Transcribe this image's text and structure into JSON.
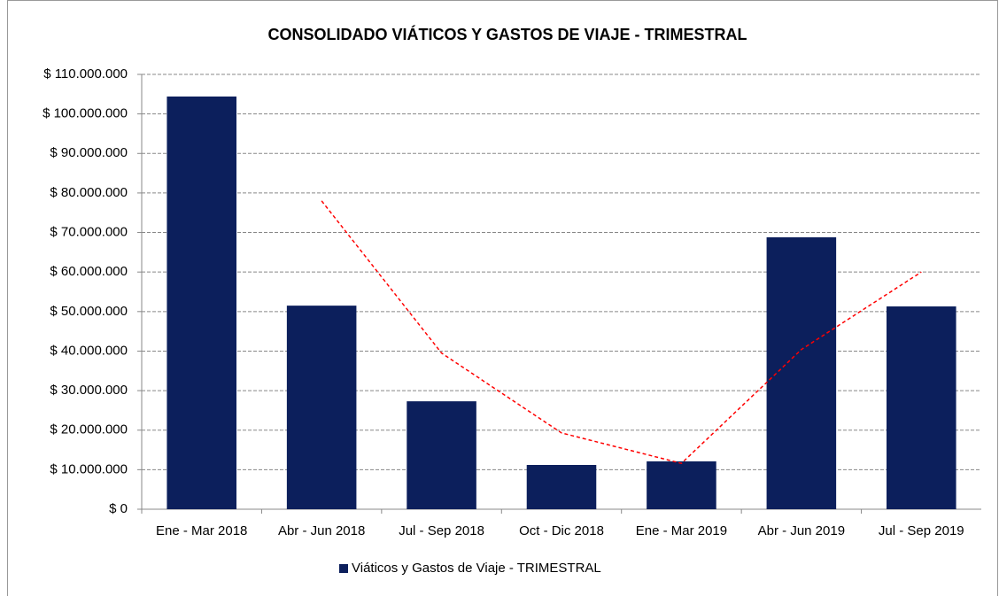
{
  "chart_data": {
    "type": "bar",
    "title": "CONSOLIDADO VIÁTICOS Y GASTOS DE VIAJE  - TRIMESTRAL",
    "categories": [
      "Ene - Mar 2018",
      "Abr - Jun 2018",
      "Jul - Sep 2018",
      "Oct - Dic 2018",
      "Ene - Mar 2019",
      "Abr - Jun 2019",
      "Jul - Sep 2019"
    ],
    "series": [
      {
        "name": "Viáticos y Gastos de Viaje   - TRIMESTRAL",
        "color": "#0c1f5c",
        "values": [
          104400000,
          51500000,
          27300000,
          11200000,
          12100000,
          68800000,
          51300000
        ]
      }
    ],
    "trendline": {
      "color": "#ff0000",
      "values": [
        null,
        78000000,
        39500000,
        19300000,
        11600000,
        40400000,
        60000000
      ]
    },
    "ylim": [
      0,
      110000000
    ],
    "yticks": [
      {
        "value": 0,
        "label": "$ 0"
      },
      {
        "value": 10000000,
        "label": "$ 10.000.000"
      },
      {
        "value": 20000000,
        "label": "$ 20.000.000"
      },
      {
        "value": 30000000,
        "label": "$ 30.000.000"
      },
      {
        "value": 40000000,
        "label": "$ 40.000.000"
      },
      {
        "value": 50000000,
        "label": "$ 50.000.000"
      },
      {
        "value": 60000000,
        "label": "$ 60.000.000"
      },
      {
        "value": 70000000,
        "label": "$ 70.000.000"
      },
      {
        "value": 80000000,
        "label": "$ 80.000.000"
      },
      {
        "value": 90000000,
        "label": "$ 90.000.000"
      },
      {
        "value": 100000000,
        "label": "$ 100.000.000"
      },
      {
        "value": 110000000,
        "label": "$ 110.000.000"
      }
    ],
    "grid": true,
    "legend": "bottom"
  }
}
